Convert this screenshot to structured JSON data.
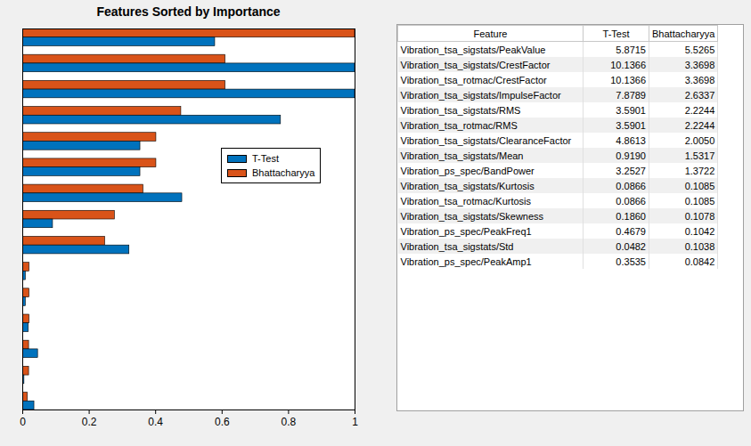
{
  "chart_data": {
    "type": "bar",
    "title": "Features Sorted by Importance",
    "orientation": "horizontal",
    "categories": [
      null,
      null,
      null,
      null,
      null,
      null,
      null,
      null,
      null,
      null,
      null,
      null,
      null,
      null,
      null
    ],
    "series": [
      {
        "name": "T-Test",
        "color": "#0072BD",
        "values": [
          0.579,
          1,
          1,
          0.777,
          0.354,
          0.354,
          0.48,
          0.091,
          0.321,
          0.009,
          0.009,
          0.018,
          0.046,
          0.005,
          0.035
        ]
      },
      {
        "name": "Bhattacharyya",
        "color": "#D95319",
        "values": [
          1,
          0.61,
          0.61,
          0.477,
          0.402,
          0.402,
          0.363,
          0.277,
          0.248,
          0.02,
          0.02,
          0.02,
          0.019,
          0.019,
          0.015
        ]
      }
    ],
    "xlim": [
      0,
      1
    ],
    "xticks": [
      0,
      0.2,
      0.4,
      0.6,
      0.8,
      1
    ],
    "grid": false,
    "legend": "east",
    "tick_labels": "x"
  },
  "table": {
    "columns": [
      "Feature",
      "T-Test",
      "Bhattacharyya"
    ],
    "rows": [
      [
        "Vibration_tsa_sigstats/PeakValue",
        "5.8715",
        "5.5265"
      ],
      [
        "Vibration_tsa_sigstats/CrestFactor",
        "10.1366",
        "3.3698"
      ],
      [
        "Vibration_tsa_rotmac/CrestFactor",
        "10.1366",
        "3.3698"
      ],
      [
        "Vibration_tsa_sigstats/ImpulseFactor",
        "7.8789",
        "2.6337"
      ],
      [
        "Vibration_tsa_sigstats/RMS",
        "3.5901",
        "2.2244"
      ],
      [
        "Vibration_tsa_rotmac/RMS",
        "3.5901",
        "2.2244"
      ],
      [
        "Vibration_tsa_sigstats/ClearanceFactor",
        "4.8613",
        "2.0050"
      ],
      [
        "Vibration_tsa_sigstats/Mean",
        "0.9190",
        "1.5317"
      ],
      [
        "Vibration_ps_spec/BandPower",
        "3.2527",
        "1.3722"
      ],
      [
        "Vibration_tsa_sigstats/Kurtosis",
        "0.0866",
        "0.1085"
      ],
      [
        "Vibration_tsa_rotmac/Kurtosis",
        "0.0866",
        "0.1085"
      ],
      [
        "Vibration_tsa_sigstats/Skewness",
        "0.1860",
        "0.1078"
      ],
      [
        "Vibration_ps_spec/PeakFreq1",
        "0.4679",
        "0.1042"
      ],
      [
        "Vibration_tsa_sigstats/Std",
        "0.0482",
        "0.1038"
      ],
      [
        "Vibration_ps_spec/PeakAmp1",
        "0.3535",
        "0.0842"
      ]
    ]
  }
}
